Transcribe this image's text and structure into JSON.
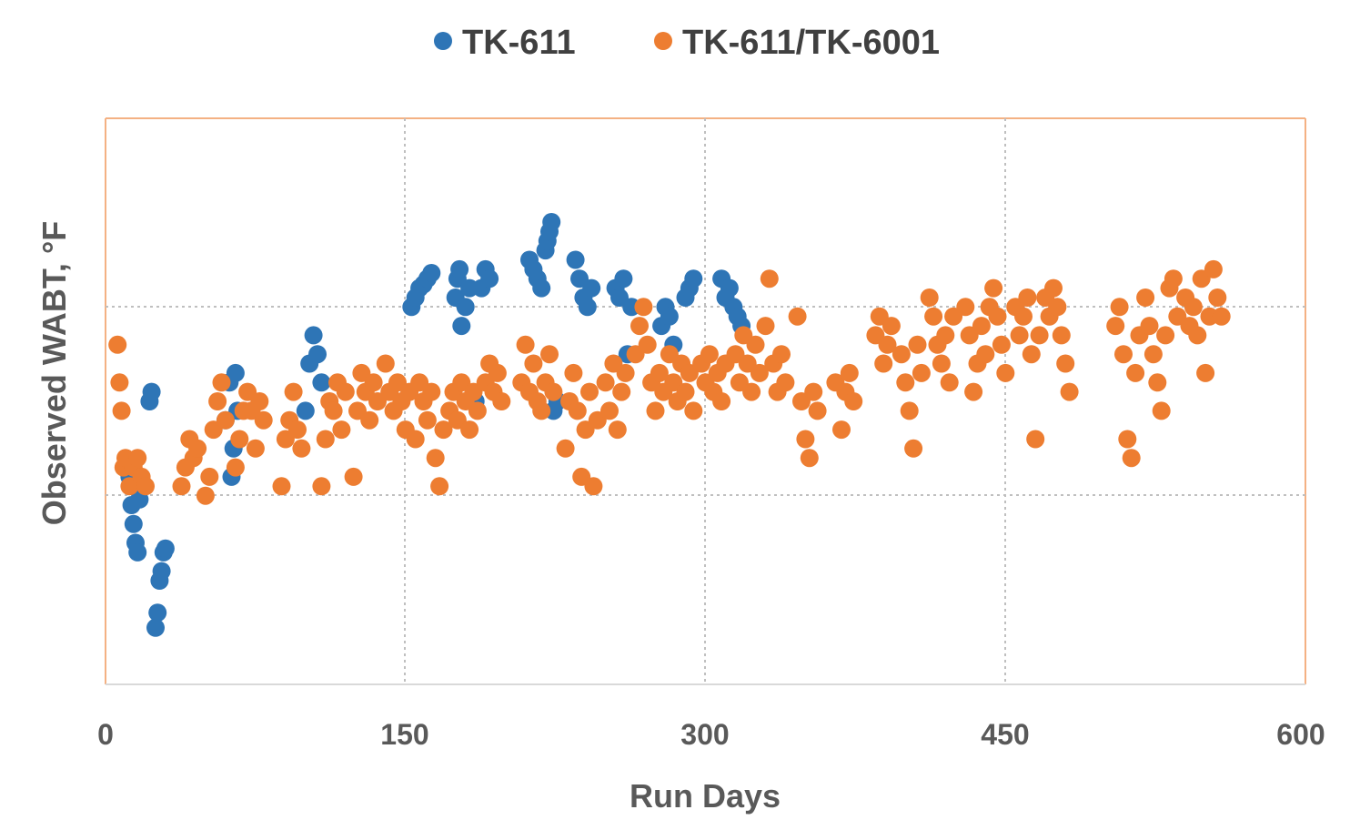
{
  "chart_data": {
    "type": "scatter",
    "title": "",
    "xlabel": "Run Days",
    "ylabel": "Observed WABT, °F",
    "xlim": [
      0,
      600
    ],
    "ylim": [
      0,
      3
    ],
    "xticks": [
      "0",
      "150",
      "300",
      "450",
      "600"
    ],
    "yticks_visible": false,
    "grid": "dotted, x at 150/300/450, y at 1 and 2",
    "legend_position": "top-center",
    "colors": {
      "TK-611": "#2E75B6",
      "TK-611/TK-6001": "#ED7D31",
      "frame": "#F4B183",
      "grid": "#BFBFBF",
      "text": "#595959"
    },
    "series": [
      {
        "name": "TK-611",
        "points": [
          [
            12,
            1.1
          ],
          [
            13,
            0.95
          ],
          [
            14,
            0.85
          ],
          [
            15,
            0.75
          ],
          [
            16,
            0.7
          ],
          [
            17,
            0.98
          ],
          [
            18,
            1.05
          ],
          [
            22,
            1.5
          ],
          [
            23,
            1.55
          ],
          [
            25,
            0.3
          ],
          [
            26,
            0.38
          ],
          [
            27,
            0.55
          ],
          [
            28,
            0.6
          ],
          [
            29,
            0.7
          ],
          [
            30,
            0.72
          ],
          [
            60,
            1.4
          ],
          [
            62,
            1.6
          ],
          [
            63,
            1.1
          ],
          [
            64,
            1.25
          ],
          [
            65,
            1.65
          ],
          [
            66,
            1.45
          ],
          [
            100,
            1.45
          ],
          [
            102,
            1.7
          ],
          [
            104,
            1.85
          ],
          [
            106,
            1.75
          ],
          [
            108,
            1.6
          ],
          [
            153,
            2.0
          ],
          [
            155,
            2.05
          ],
          [
            157,
            2.1
          ],
          [
            159,
            2.12
          ],
          [
            161,
            2.15
          ],
          [
            163,
            2.18
          ],
          [
            175,
            2.05
          ],
          [
            176,
            2.15
          ],
          [
            177,
            2.2
          ],
          [
            178,
            1.9
          ],
          [
            180,
            2.0
          ],
          [
            182,
            2.1
          ],
          [
            185,
            1.5
          ],
          [
            188,
            2.1
          ],
          [
            190,
            2.2
          ],
          [
            192,
            2.15
          ],
          [
            212,
            2.25
          ],
          [
            214,
            2.2
          ],
          [
            216,
            2.15
          ],
          [
            218,
            2.1
          ],
          [
            220,
            2.3
          ],
          [
            221,
            2.35
          ],
          [
            222,
            2.4
          ],
          [
            223,
            2.45
          ],
          [
            224,
            1.45
          ],
          [
            226,
            1.5
          ],
          [
            235,
            2.25
          ],
          [
            237,
            2.15
          ],
          [
            239,
            2.05
          ],
          [
            241,
            2.0
          ],
          [
            243,
            2.1
          ],
          [
            255,
            2.1
          ],
          [
            257,
            2.05
          ],
          [
            259,
            2.15
          ],
          [
            261,
            1.75
          ],
          [
            263,
            2.0
          ],
          [
            278,
            1.9
          ],
          [
            280,
            2.0
          ],
          [
            282,
            1.95
          ],
          [
            284,
            1.8
          ],
          [
            290,
            2.05
          ],
          [
            292,
            2.1
          ],
          [
            294,
            2.15
          ],
          [
            308,
            2.15
          ],
          [
            310,
            2.05
          ],
          [
            312,
            2.1
          ],
          [
            314,
            2.0
          ],
          [
            316,
            1.95
          ],
          [
            318,
            1.9
          ]
        ]
      },
      {
        "name": "TK-611/TK-6001",
        "points": [
          [
            6,
            1.8
          ],
          [
            7,
            1.6
          ],
          [
            8,
            1.45
          ],
          [
            9,
            1.15
          ],
          [
            10,
            1.2
          ],
          [
            12,
            1.05
          ],
          [
            14,
            1.15
          ],
          [
            16,
            1.2
          ],
          [
            18,
            1.1
          ],
          [
            20,
            1.05
          ],
          [
            38,
            1.05
          ],
          [
            40,
            1.15
          ],
          [
            42,
            1.3
          ],
          [
            44,
            1.2
          ],
          [
            46,
            1.25
          ],
          [
            50,
            1.0
          ],
          [
            52,
            1.1
          ],
          [
            54,
            1.35
          ],
          [
            56,
            1.5
          ],
          [
            58,
            1.6
          ],
          [
            60,
            1.4
          ],
          [
            65,
            1.15
          ],
          [
            67,
            1.3
          ],
          [
            69,
            1.45
          ],
          [
            71,
            1.55
          ],
          [
            73,
            1.45
          ],
          [
            75,
            1.25
          ],
          [
            77,
            1.5
          ],
          [
            79,
            1.4
          ],
          [
            88,
            1.05
          ],
          [
            90,
            1.3
          ],
          [
            92,
            1.4
          ],
          [
            94,
            1.55
          ],
          [
            96,
            1.35
          ],
          [
            98,
            1.25
          ],
          [
            108,
            1.05
          ],
          [
            110,
            1.3
          ],
          [
            112,
            1.5
          ],
          [
            114,
            1.45
          ],
          [
            116,
            1.6
          ],
          [
            118,
            1.35
          ],
          [
            120,
            1.55
          ],
          [
            124,
            1.1
          ],
          [
            126,
            1.45
          ],
          [
            128,
            1.65
          ],
          [
            130,
            1.55
          ],
          [
            132,
            1.4
          ],
          [
            134,
            1.6
          ],
          [
            136,
            1.5
          ],
          [
            140,
            1.7
          ],
          [
            142,
            1.55
          ],
          [
            144,
            1.45
          ],
          [
            146,
            1.6
          ],
          [
            148,
            1.5
          ],
          [
            150,
            1.35
          ],
          [
            152,
            1.55
          ],
          [
            155,
            1.3
          ],
          [
            157,
            1.6
          ],
          [
            159,
            1.5
          ],
          [
            161,
            1.4
          ],
          [
            163,
            1.55
          ],
          [
            165,
            1.2
          ],
          [
            167,
            1.05
          ],
          [
            169,
            1.35
          ],
          [
            172,
            1.45
          ],
          [
            174,
            1.55
          ],
          [
            176,
            1.4
          ],
          [
            178,
            1.6
          ],
          [
            180,
            1.5
          ],
          [
            182,
            1.35
          ],
          [
            184,
            1.55
          ],
          [
            186,
            1.45
          ],
          [
            190,
            1.6
          ],
          [
            192,
            1.7
          ],
          [
            194,
            1.55
          ],
          [
            196,
            1.65
          ],
          [
            198,
            1.5
          ],
          [
            208,
            1.6
          ],
          [
            210,
            1.8
          ],
          [
            212,
            1.55
          ],
          [
            214,
            1.7
          ],
          [
            216,
            1.5
          ],
          [
            218,
            1.45
          ],
          [
            220,
            1.6
          ],
          [
            222,
            1.75
          ],
          [
            224,
            1.55
          ],
          [
            230,
            1.25
          ],
          [
            232,
            1.5
          ],
          [
            234,
            1.65
          ],
          [
            236,
            1.45
          ],
          [
            238,
            1.1
          ],
          [
            240,
            1.35
          ],
          [
            242,
            1.55
          ],
          [
            244,
            1.05
          ],
          [
            246,
            1.4
          ],
          [
            250,
            1.6
          ],
          [
            252,
            1.45
          ],
          [
            254,
            1.7
          ],
          [
            256,
            1.35
          ],
          [
            258,
            1.55
          ],
          [
            260,
            1.65
          ],
          [
            265,
            1.75
          ],
          [
            267,
            1.9
          ],
          [
            269,
            2.0
          ],
          [
            271,
            1.8
          ],
          [
            273,
            1.6
          ],
          [
            275,
            1.45
          ],
          [
            277,
            1.65
          ],
          [
            279,
            1.55
          ],
          [
            282,
            1.75
          ],
          [
            284,
            1.6
          ],
          [
            286,
            1.5
          ],
          [
            288,
            1.7
          ],
          [
            290,
            1.55
          ],
          [
            292,
            1.65
          ],
          [
            294,
            1.45
          ],
          [
            298,
            1.7
          ],
          [
            300,
            1.6
          ],
          [
            302,
            1.75
          ],
          [
            304,
            1.55
          ],
          [
            306,
            1.65
          ],
          [
            308,
            1.5
          ],
          [
            310,
            1.7
          ],
          [
            315,
            1.75
          ],
          [
            317,
            1.6
          ],
          [
            319,
            1.85
          ],
          [
            321,
            1.7
          ],
          [
            323,
            1.55
          ],
          [
            325,
            1.8
          ],
          [
            327,
            1.65
          ],
          [
            330,
            1.9
          ],
          [
            332,
            2.15
          ],
          [
            334,
            1.7
          ],
          [
            336,
            1.55
          ],
          [
            338,
            1.75
          ],
          [
            340,
            1.6
          ],
          [
            346,
            1.95
          ],
          [
            348,
            1.5
          ],
          [
            350,
            1.3
          ],
          [
            352,
            1.2
          ],
          [
            354,
            1.55
          ],
          [
            356,
            1.45
          ],
          [
            365,
            1.6
          ],
          [
            368,
            1.35
          ],
          [
            370,
            1.55
          ],
          [
            372,
            1.65
          ],
          [
            374,
            1.5
          ],
          [
            385,
            1.85
          ],
          [
            387,
            1.95
          ],
          [
            389,
            1.7
          ],
          [
            391,
            1.8
          ],
          [
            393,
            1.9
          ],
          [
            398,
            1.75
          ],
          [
            400,
            1.6
          ],
          [
            402,
            1.45
          ],
          [
            404,
            1.25
          ],
          [
            406,
            1.8
          ],
          [
            408,
            1.65
          ],
          [
            412,
            2.05
          ],
          [
            414,
            1.95
          ],
          [
            416,
            1.8
          ],
          [
            418,
            1.7
          ],
          [
            420,
            1.85
          ],
          [
            422,
            1.6
          ],
          [
            424,
            1.95
          ],
          [
            430,
            2.0
          ],
          [
            432,
            1.85
          ],
          [
            434,
            1.55
          ],
          [
            436,
            1.7
          ],
          [
            438,
            1.9
          ],
          [
            440,
            1.75
          ],
          [
            442,
            2.0
          ],
          [
            444,
            2.1
          ],
          [
            446,
            1.95
          ],
          [
            448,
            1.8
          ],
          [
            450,
            1.65
          ],
          [
            455,
            2.0
          ],
          [
            457,
            1.85
          ],
          [
            459,
            1.95
          ],
          [
            461,
            2.05
          ],
          [
            463,
            1.75
          ],
          [
            465,
            1.3
          ],
          [
            467,
            1.85
          ],
          [
            470,
            2.05
          ],
          [
            472,
            1.95
          ],
          [
            474,
            2.1
          ],
          [
            476,
            2.0
          ],
          [
            478,
            1.85
          ],
          [
            480,
            1.7
          ],
          [
            482,
            1.55
          ],
          [
            505,
            1.9
          ],
          [
            507,
            2.0
          ],
          [
            509,
            1.75
          ],
          [
            511,
            1.3
          ],
          [
            513,
            1.2
          ],
          [
            515,
            1.65
          ],
          [
            517,
            1.85
          ],
          [
            520,
            2.05
          ],
          [
            522,
            1.9
          ],
          [
            524,
            1.75
          ],
          [
            526,
            1.6
          ],
          [
            528,
            1.45
          ],
          [
            530,
            1.85
          ],
          [
            532,
            2.1
          ],
          [
            534,
            2.15
          ],
          [
            536,
            1.95
          ],
          [
            540,
            2.05
          ],
          [
            542,
            1.9
          ],
          [
            544,
            2.0
          ],
          [
            546,
            1.85
          ],
          [
            548,
            2.15
          ],
          [
            550,
            1.65
          ],
          [
            552,
            1.95
          ],
          [
            554,
            2.2
          ],
          [
            556,
            2.05
          ],
          [
            558,
            1.95
          ]
        ]
      }
    ]
  }
}
